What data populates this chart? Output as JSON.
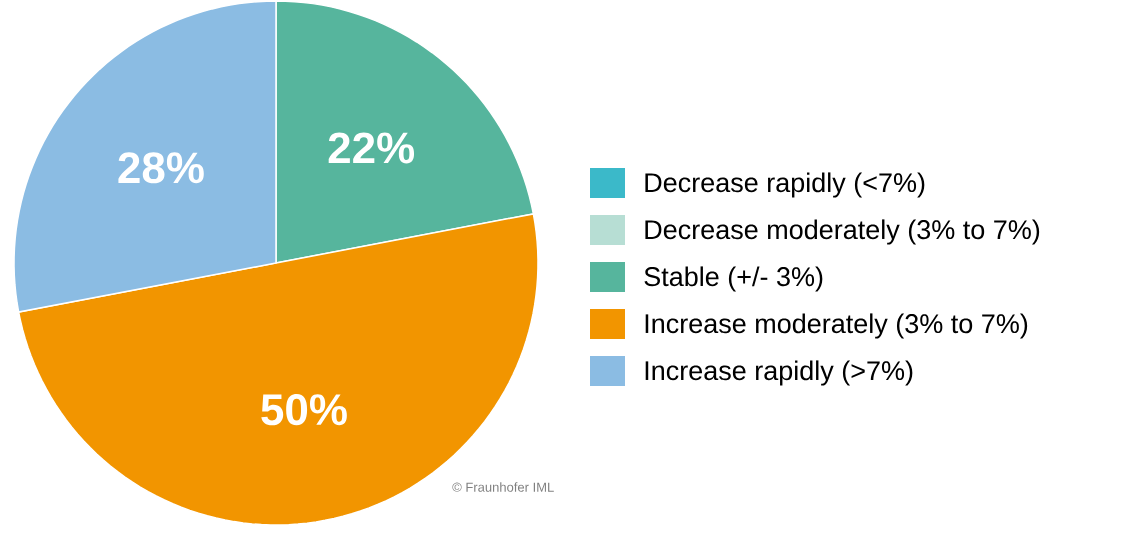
{
  "chart_data": {
    "type": "pie",
    "categories": [
      "Decrease rapidly (<7%)",
      "Decrease moderately (3% to 7%)",
      "Stable (+/- 3%)",
      "Increase moderately (3% to 7%)",
      "Increase rapidly (>7%)"
    ],
    "values": [
      0,
      0,
      22,
      50,
      28
    ],
    "colors": [
      "#3bb9c9",
      "#b7ded4",
      "#56b59d",
      "#f29500",
      "#8bbce3"
    ],
    "value_labels": [
      null,
      null,
      "22%",
      "50%",
      "28%"
    ],
    "legend": "right",
    "annotations": [
      "© Fraunhofer IML"
    ]
  }
}
